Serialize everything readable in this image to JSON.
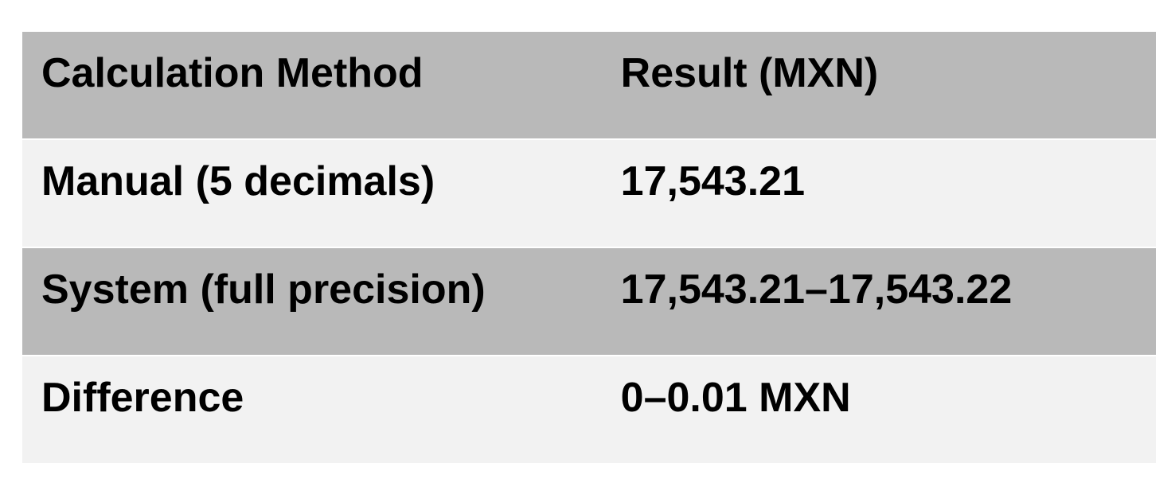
{
  "table": {
    "columns": [
      "Calculation Method",
      "Result (MXN)"
    ],
    "rows": [
      {
        "method": "Manual (5 decimals)",
        "result": "17,543.21"
      },
      {
        "method": "System (full precision)",
        "result": "17,543.21–17,543.22"
      },
      {
        "method": "Difference",
        "result": "0–0.01 MXN"
      }
    ],
    "colors": {
      "header_bg": "#b9b9b9",
      "alt_row_bg": "#b9b9b9",
      "light_row_bg": "#f2f2f2",
      "separator": "#ffffff",
      "text": "#000000",
      "page_bg": "#ffffff"
    }
  }
}
